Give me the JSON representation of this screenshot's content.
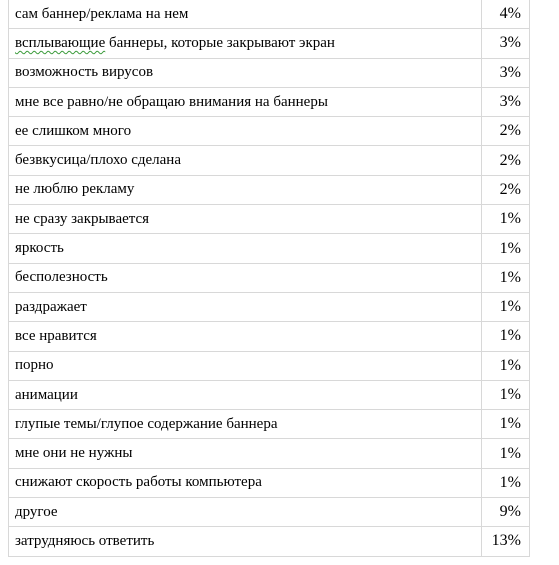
{
  "table": {
    "rows": [
      {
        "answer": "сам баннер/реклама на нем",
        "percent": "4%"
      },
      {
        "answer_underlined": "всплывающие",
        "answer": " баннеры, которые закрывают экран",
        "percent": "3%"
      },
      {
        "answer": "возможность вирусов",
        "percent": "3%"
      },
      {
        "answer": "мне все равно/не обращаю внимания на баннеры",
        "percent": "3%"
      },
      {
        "answer": "ее слишком много",
        "percent": "2%"
      },
      {
        "answer": "безвкусица/плохо сделана",
        "percent": "2%"
      },
      {
        "answer": "не люблю рекламу",
        "percent": "2%"
      },
      {
        "answer": "не сразу закрывается",
        "percent": "1%"
      },
      {
        "answer": "яркость",
        "percent": "1%"
      },
      {
        "answer": "бесполезность",
        "percent": "1%"
      },
      {
        "answer": "раздражает",
        "percent": "1%"
      },
      {
        "answer": "все нравится",
        "percent": "1%"
      },
      {
        "answer": "порно",
        "percent": "1%"
      },
      {
        "answer": "анимации",
        "percent": "1%"
      },
      {
        "answer": "глупые темы/глупое содержание баннера",
        "percent": "1%"
      },
      {
        "answer": "мне они не нужны",
        "percent": "1%"
      },
      {
        "answer": "снижают скорость работы компьютера",
        "percent": "1%"
      },
      {
        "answer": "другое",
        "percent": "9%"
      },
      {
        "answer": "затрудняюсь ответить",
        "percent": "13%"
      }
    ]
  }
}
